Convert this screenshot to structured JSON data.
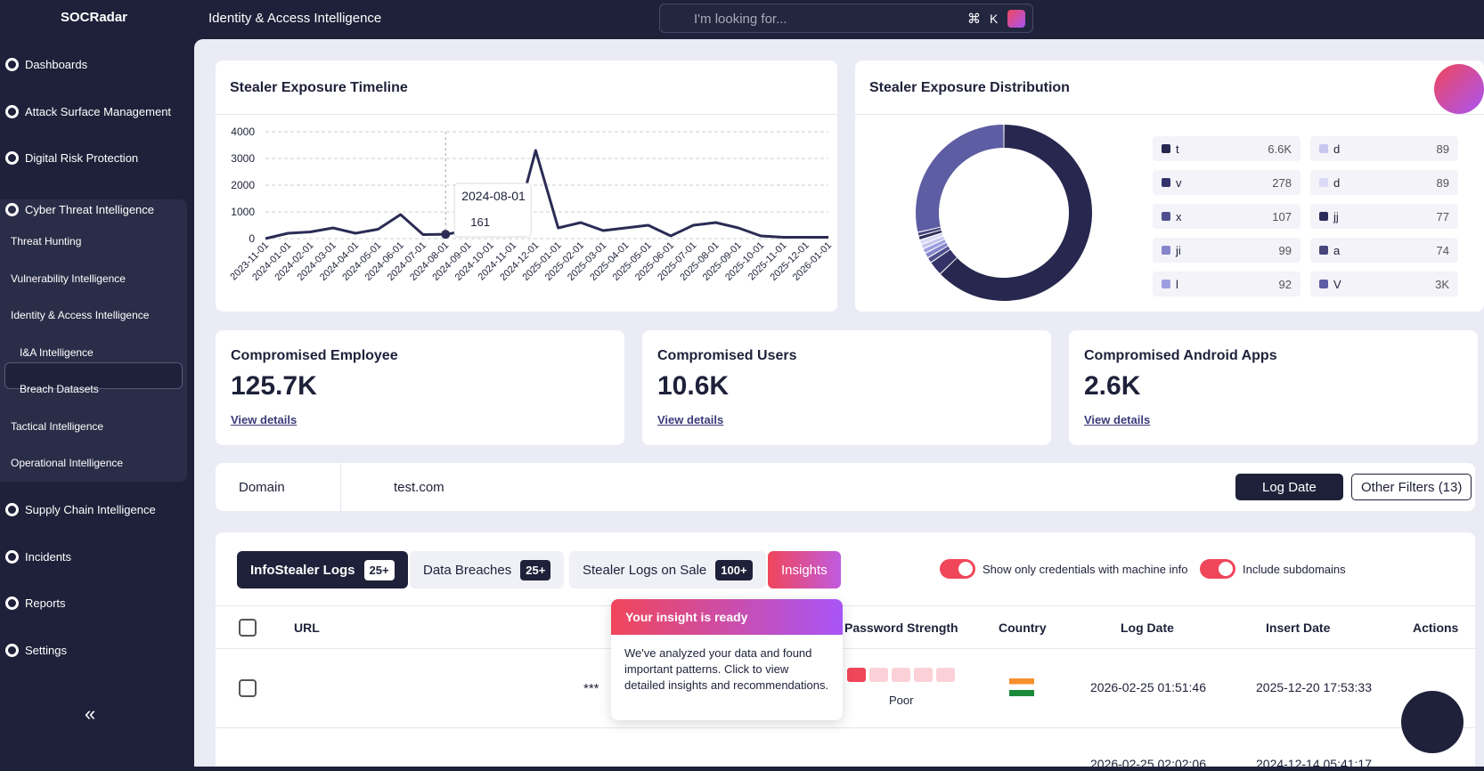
{
  "header": {
    "logo": "SOCRadar",
    "title": "Identity & Access Intelligence",
    "search_placeholder": "I'm looking for...",
    "shortcut": [
      "⌘",
      "K"
    ]
  },
  "sidebar": {
    "items": [
      "Dashboards",
      "Attack Surface Management",
      "Digital Risk Protection",
      "Cyber Threat Intelligence",
      "Threat Hunting",
      "Vulnerability Intelligence",
      "Identity & Access Intelligence",
      "I&A Intelligence",
      "Breach Datasets",
      "Tactical Intelligence",
      "Operational Intelligence",
      "Supply Chain Intelligence",
      "Incidents",
      "Reports",
      "Settings"
    ],
    "collapse": "«"
  },
  "timeline": {
    "type": "line",
    "title": "Stealer Exposure Timeline",
    "color": "#2b2b55",
    "x": [
      "2023-11-01",
      "2024-01-01",
      "2024-02-01",
      "2024-03-01",
      "2024-04-01",
      "2024-05-01",
      "2024-06-01",
      "2024-07-01",
      "2024-08-01",
      "2024-09-01",
      "2024-10-01",
      "2024-11-01",
      "2024-12-01",
      "2025-01-01",
      "2025-02-01",
      "2025-03-01",
      "2025-04-01",
      "2025-05-01",
      "2025-06-01",
      "2025-07-01",
      "2025-08-01",
      "2025-09-01",
      "2025-10-01",
      "2025-11-01",
      "2025-12-01",
      "2026-01-01"
    ],
    "values": [
      0,
      200,
      250,
      400,
      200,
      350,
      900,
      150,
      161,
      300,
      200,
      150,
      3300,
      400,
      600,
      300,
      400,
      500,
      100,
      500,
      600,
      400,
      100,
      50,
      50,
      50
    ],
    "ylim": [
      0,
      4000
    ],
    "yticks": [
      0,
      1000,
      2000,
      3000,
      4000
    ],
    "grid": true,
    "tooltip": {
      "x": "2024-08-01",
      "value": "161"
    }
  },
  "distribution": {
    "type": "pie",
    "title": "Stealer Exposure Distribution",
    "names": [
      "t",
      "v",
      "x",
      "ji",
      "l",
      "d",
      "d",
      "jj",
      "a",
      "V"
    ],
    "values": [
      6600,
      278,
      107,
      99,
      92,
      89,
      89,
      77,
      74,
      3000
    ],
    "value_labels": [
      "6.6K",
      "278",
      "107",
      "99",
      "92",
      "89",
      "89",
      "77",
      "74",
      "3K"
    ],
    "colors": [
      "#27274f",
      "#33336a",
      "#505090",
      "#8585cc",
      "#9d9de0",
      "#c6c6ef",
      "#dadaf6",
      "#2c2c58",
      "#46467c",
      "#5d5da3"
    ]
  },
  "cards": [
    {
      "title": "Compromised Employee",
      "value": "125.7K",
      "link": "View details"
    },
    {
      "title": "Compromised Users",
      "value": "10.6K",
      "link": "View details"
    },
    {
      "title": "Compromised Android Apps",
      "value": "2.6K",
      "link": "View details"
    }
  ],
  "filter": {
    "field": "Domain",
    "query": "test.com",
    "log_date": "Log Date",
    "other": "Other Filters",
    "other_count": "(13)"
  },
  "tabs": [
    {
      "label": "InfoStealer Logs",
      "badge": "25+"
    },
    {
      "label": "Data Breaches",
      "badge": "25+"
    },
    {
      "label": "Stealer Logs on Sale",
      "badge": "100+"
    },
    {
      "label": "Insights"
    }
  ],
  "toggles": [
    "Show only credentials with machine info",
    "Include subdomains"
  ],
  "table": {
    "headers": [
      "URL",
      "Password Strength",
      "Country",
      "Log Date",
      "Insert Date",
      "Actions"
    ],
    "rows": [
      {
        "password": "***",
        "strength": "Poor",
        "log_date": "2026-02-25 01:51:46",
        "insert_date": "2025-12-20 17:53:33"
      },
      {
        "log_date": "2026-02-25 02:02:06",
        "insert_date": "2024-12-14 05:41:17"
      }
    ]
  },
  "popup": {
    "title": "Your insight is ready",
    "body": "We've analyzed your data and found important patterns. Click to view detailed insights and recommendations."
  }
}
